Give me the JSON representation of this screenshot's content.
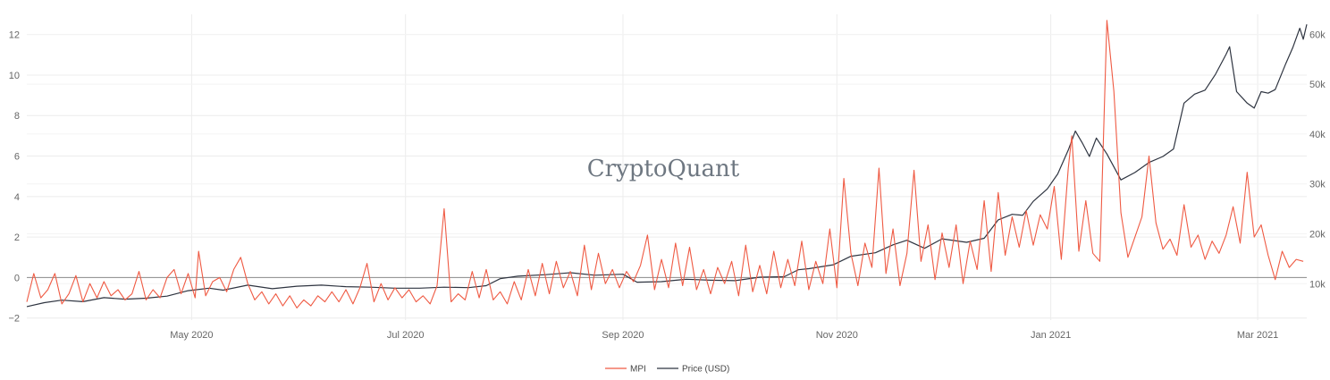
{
  "brand": {
    "watermark": "CryptoQuant"
  },
  "colors": {
    "mpi": "#ef5a43",
    "price": "#2e3440",
    "grid": "#ececec",
    "zero": "#8a8a8a",
    "tick": "#666666"
  },
  "chart_data": {
    "type": "line",
    "title": "",
    "x_range": [
      "2020-03-15",
      "2021-03-15"
    ],
    "x_ticks": [
      {
        "date": "2020-05-01",
        "label": "May 2020"
      },
      {
        "date": "2020-07-01",
        "label": "Jul 2020"
      },
      {
        "date": "2020-09-01",
        "label": "Sep 2020"
      },
      {
        "date": "2020-11-01",
        "label": "Nov 2020"
      },
      {
        "date": "2021-01-01",
        "label": "Jan 2021"
      },
      {
        "date": "2021-03-01",
        "label": "Mar 2021"
      }
    ],
    "y_left": {
      "range": [
        -2.1,
        13.0
      ],
      "ticks": [
        12,
        10,
        8,
        6,
        4,
        2,
        0,
        -2
      ],
      "labels": [
        "12",
        "10",
        "8",
        "6",
        "4",
        "2",
        "0",
        "−2"
      ]
    },
    "y_right": {
      "range": [
        2700,
        64000
      ],
      "ticks": [
        60000,
        50000,
        40000,
        30000,
        20000,
        10000
      ],
      "labels": [
        "60k",
        "50k",
        "40k",
        "30k",
        "20k",
        "10k"
      ]
    },
    "series": [
      {
        "name": "MPI",
        "axis": "left",
        "color": "#ef5a43",
        "points": [
          [
            "2020-03-15",
            -1.2
          ],
          [
            "2020-03-17",
            0.2
          ],
          [
            "2020-03-19",
            -1.0
          ],
          [
            "2020-03-21",
            -0.6
          ],
          [
            "2020-03-23",
            0.2
          ],
          [
            "2020-03-25",
            -1.3
          ],
          [
            "2020-03-27",
            -0.8
          ],
          [
            "2020-03-29",
            0.1
          ],
          [
            "2020-03-31",
            -1.2
          ],
          [
            "2020-04-02",
            -0.3
          ],
          [
            "2020-04-04",
            -1.0
          ],
          [
            "2020-04-06",
            -0.2
          ],
          [
            "2020-04-08",
            -0.9
          ],
          [
            "2020-04-10",
            -0.6
          ],
          [
            "2020-04-12",
            -1.1
          ],
          [
            "2020-04-14",
            -0.8
          ],
          [
            "2020-04-16",
            0.3
          ],
          [
            "2020-04-18",
            -1.1
          ],
          [
            "2020-04-20",
            -0.6
          ],
          [
            "2020-04-22",
            -1.0
          ],
          [
            "2020-04-24",
            0.0
          ],
          [
            "2020-04-26",
            0.4
          ],
          [
            "2020-04-28",
            -0.8
          ],
          [
            "2020-04-30",
            0.2
          ],
          [
            "2020-05-02",
            -1.0
          ],
          [
            "2020-05-03",
            1.3
          ],
          [
            "2020-05-05",
            -0.9
          ],
          [
            "2020-05-07",
            -0.2
          ],
          [
            "2020-05-09",
            0.0
          ],
          [
            "2020-05-11",
            -0.7
          ],
          [
            "2020-05-13",
            0.4
          ],
          [
            "2020-05-15",
            1.0
          ],
          [
            "2020-05-17",
            -0.3
          ],
          [
            "2020-05-19",
            -1.1
          ],
          [
            "2020-05-21",
            -0.7
          ],
          [
            "2020-05-23",
            -1.3
          ],
          [
            "2020-05-25",
            -0.8
          ],
          [
            "2020-05-27",
            -1.4
          ],
          [
            "2020-05-29",
            -0.9
          ],
          [
            "2020-05-31",
            -1.5
          ],
          [
            "2020-06-02",
            -1.1
          ],
          [
            "2020-06-04",
            -1.4
          ],
          [
            "2020-06-06",
            -0.9
          ],
          [
            "2020-06-08",
            -1.2
          ],
          [
            "2020-06-10",
            -0.7
          ],
          [
            "2020-06-12",
            -1.2
          ],
          [
            "2020-06-14",
            -0.6
          ],
          [
            "2020-06-16",
            -1.3
          ],
          [
            "2020-06-18",
            -0.5
          ],
          [
            "2020-06-20",
            0.7
          ],
          [
            "2020-06-22",
            -1.2
          ],
          [
            "2020-06-24",
            -0.3
          ],
          [
            "2020-06-26",
            -1.1
          ],
          [
            "2020-06-28",
            -0.5
          ],
          [
            "2020-06-30",
            -1.0
          ],
          [
            "2020-07-02",
            -0.6
          ],
          [
            "2020-07-04",
            -1.2
          ],
          [
            "2020-07-06",
            -0.9
          ],
          [
            "2020-07-08",
            -1.3
          ],
          [
            "2020-07-10",
            -0.4
          ],
          [
            "2020-07-12",
            3.4
          ],
          [
            "2020-07-14",
            -1.2
          ],
          [
            "2020-07-16",
            -0.8
          ],
          [
            "2020-07-18",
            -1.1
          ],
          [
            "2020-07-20",
            0.3
          ],
          [
            "2020-07-22",
            -1.0
          ],
          [
            "2020-07-24",
            0.4
          ],
          [
            "2020-07-26",
            -1.1
          ],
          [
            "2020-07-28",
            -0.7
          ],
          [
            "2020-07-30",
            -1.3
          ],
          [
            "2020-08-01",
            -0.2
          ],
          [
            "2020-08-03",
            -1.1
          ],
          [
            "2020-08-05",
            0.4
          ],
          [
            "2020-08-07",
            -0.9
          ],
          [
            "2020-08-09",
            0.7
          ],
          [
            "2020-08-11",
            -0.8
          ],
          [
            "2020-08-13",
            0.8
          ],
          [
            "2020-08-15",
            -0.5
          ],
          [
            "2020-08-17",
            0.3
          ],
          [
            "2020-08-19",
            -0.9
          ],
          [
            "2020-08-21",
            1.6
          ],
          [
            "2020-08-23",
            -0.6
          ],
          [
            "2020-08-25",
            1.2
          ],
          [
            "2020-08-27",
            -0.3
          ],
          [
            "2020-08-29",
            0.4
          ],
          [
            "2020-08-31",
            -0.5
          ],
          [
            "2020-09-02",
            0.3
          ],
          [
            "2020-09-04",
            -0.2
          ],
          [
            "2020-09-06",
            0.6
          ],
          [
            "2020-09-08",
            2.1
          ],
          [
            "2020-09-10",
            -0.6
          ],
          [
            "2020-09-12",
            0.9
          ],
          [
            "2020-09-14",
            -0.5
          ],
          [
            "2020-09-16",
            1.7
          ],
          [
            "2020-09-18",
            -0.4
          ],
          [
            "2020-09-20",
            1.5
          ],
          [
            "2020-09-22",
            -0.6
          ],
          [
            "2020-09-24",
            0.4
          ],
          [
            "2020-09-26",
            -0.8
          ],
          [
            "2020-09-28",
            0.5
          ],
          [
            "2020-09-30",
            -0.3
          ],
          [
            "2020-10-02",
            0.8
          ],
          [
            "2020-10-04",
            -0.9
          ],
          [
            "2020-10-06",
            1.6
          ],
          [
            "2020-10-08",
            -0.7
          ],
          [
            "2020-10-10",
            0.6
          ],
          [
            "2020-10-12",
            -0.8
          ],
          [
            "2020-10-14",
            1.3
          ],
          [
            "2020-10-16",
            -0.5
          ],
          [
            "2020-10-18",
            0.9
          ],
          [
            "2020-10-20",
            -0.4
          ],
          [
            "2020-10-22",
            1.8
          ],
          [
            "2020-10-24",
            -0.6
          ],
          [
            "2020-10-26",
            0.8
          ],
          [
            "2020-10-28",
            -0.3
          ],
          [
            "2020-10-30",
            2.4
          ],
          [
            "2020-11-01",
            -0.5
          ],
          [
            "2020-11-03",
            4.9
          ],
          [
            "2020-11-05",
            1.2
          ],
          [
            "2020-11-07",
            -0.4
          ],
          [
            "2020-11-09",
            1.7
          ],
          [
            "2020-11-11",
            0.5
          ],
          [
            "2020-11-13",
            5.4
          ],
          [
            "2020-11-15",
            0.2
          ],
          [
            "2020-11-17",
            2.4
          ],
          [
            "2020-11-19",
            -0.4
          ],
          [
            "2020-11-21",
            1.2
          ],
          [
            "2020-11-23",
            5.3
          ],
          [
            "2020-11-25",
            0.8
          ],
          [
            "2020-11-27",
            2.6
          ],
          [
            "2020-11-29",
            -0.1
          ],
          [
            "2020-12-01",
            2.2
          ],
          [
            "2020-12-03",
            0.5
          ],
          [
            "2020-12-05",
            2.6
          ],
          [
            "2020-12-07",
            -0.3
          ],
          [
            "2020-12-09",
            1.8
          ],
          [
            "2020-12-11",
            0.4
          ],
          [
            "2020-12-13",
            3.8
          ],
          [
            "2020-12-15",
            0.3
          ],
          [
            "2020-12-17",
            4.2
          ],
          [
            "2020-12-19",
            1.1
          ],
          [
            "2020-12-21",
            3.0
          ],
          [
            "2020-12-23",
            1.5
          ],
          [
            "2020-12-25",
            3.3
          ],
          [
            "2020-12-27",
            1.6
          ],
          [
            "2020-12-29",
            3.1
          ],
          [
            "2020-12-31",
            2.4
          ],
          [
            "2021-01-02",
            4.5
          ],
          [
            "2021-01-04",
            0.9
          ],
          [
            "2021-01-06",
            5.4
          ],
          [
            "2021-01-07",
            7.0
          ],
          [
            "2021-01-09",
            1.3
          ],
          [
            "2021-01-11",
            3.8
          ],
          [
            "2021-01-13",
            1.2
          ],
          [
            "2021-01-15",
            0.8
          ],
          [
            "2021-01-17",
            12.7
          ],
          [
            "2021-01-19",
            9.2
          ],
          [
            "2021-01-21",
            3.2
          ],
          [
            "2021-01-23",
            1.0
          ],
          [
            "2021-01-25",
            2.0
          ],
          [
            "2021-01-27",
            3.0
          ],
          [
            "2021-01-29",
            6.0
          ],
          [
            "2021-01-31",
            2.7
          ],
          [
            "2021-02-02",
            1.4
          ],
          [
            "2021-02-04",
            1.9
          ],
          [
            "2021-02-06",
            1.1
          ],
          [
            "2021-02-08",
            3.6
          ],
          [
            "2021-02-10",
            1.5
          ],
          [
            "2021-02-12",
            2.1
          ],
          [
            "2021-02-14",
            0.9
          ],
          [
            "2021-02-16",
            1.8
          ],
          [
            "2021-02-18",
            1.2
          ],
          [
            "2021-02-20",
            2.1
          ],
          [
            "2021-02-22",
            3.5
          ],
          [
            "2021-02-24",
            1.7
          ],
          [
            "2021-02-26",
            5.2
          ],
          [
            "2021-02-28",
            2.0
          ],
          [
            "2021-03-02",
            2.6
          ],
          [
            "2021-03-04",
            1.1
          ],
          [
            "2021-03-06",
            -0.1
          ],
          [
            "2021-03-08",
            1.3
          ],
          [
            "2021-03-10",
            0.5
          ],
          [
            "2021-03-12",
            0.9
          ],
          [
            "2021-03-14",
            0.8
          ]
        ]
      },
      {
        "name": "Price (USD)",
        "axis": "right",
        "color": "#2e3440",
        "points": [
          [
            "2020-03-15",
            5400
          ],
          [
            "2020-03-20",
            6200
          ],
          [
            "2020-03-25",
            6700
          ],
          [
            "2020-03-31",
            6400
          ],
          [
            "2020-04-06",
            7200
          ],
          [
            "2020-04-12",
            6900
          ],
          [
            "2020-04-18",
            7100
          ],
          [
            "2020-04-24",
            7500
          ],
          [
            "2020-04-30",
            8600
          ],
          [
            "2020-05-06",
            9100
          ],
          [
            "2020-05-10",
            8700
          ],
          [
            "2020-05-17",
            9700
          ],
          [
            "2020-05-24",
            9000
          ],
          [
            "2020-05-31",
            9500
          ],
          [
            "2020-06-07",
            9700
          ],
          [
            "2020-06-14",
            9400
          ],
          [
            "2020-06-21",
            9300
          ],
          [
            "2020-06-28",
            9100
          ],
          [
            "2020-07-05",
            9100
          ],
          [
            "2020-07-12",
            9300
          ],
          [
            "2020-07-19",
            9200
          ],
          [
            "2020-07-24",
            9600
          ],
          [
            "2020-07-28",
            11000
          ],
          [
            "2020-08-02",
            11500
          ],
          [
            "2020-08-10",
            11800
          ],
          [
            "2020-08-17",
            12200
          ],
          [
            "2020-08-24",
            11700
          ],
          [
            "2020-09-01",
            11900
          ],
          [
            "2020-09-05",
            10300
          ],
          [
            "2020-09-12",
            10400
          ],
          [
            "2020-09-19",
            10900
          ],
          [
            "2020-09-26",
            10700
          ],
          [
            "2020-10-03",
            10600
          ],
          [
            "2020-10-10",
            11300
          ],
          [
            "2020-10-17",
            11400
          ],
          [
            "2020-10-21",
            12800
          ],
          [
            "2020-10-24",
            13000
          ],
          [
            "2020-10-31",
            13800
          ],
          [
            "2020-11-05",
            15500
          ],
          [
            "2020-11-12",
            16200
          ],
          [
            "2020-11-17",
            17800
          ],
          [
            "2020-11-21",
            18700
          ],
          [
            "2020-11-26",
            17100
          ],
          [
            "2020-12-01",
            19000
          ],
          [
            "2020-12-08",
            18300
          ],
          [
            "2020-12-13",
            19100
          ],
          [
            "2020-12-17",
            22800
          ],
          [
            "2020-12-21",
            23900
          ],
          [
            "2020-12-24",
            23700
          ],
          [
            "2020-12-27",
            26500
          ],
          [
            "2020-12-31",
            29000
          ],
          [
            "2021-01-03",
            32000
          ],
          [
            "2021-01-06",
            36800
          ],
          [
            "2021-01-08",
            40600
          ],
          [
            "2021-01-10",
            38200
          ],
          [
            "2021-01-12",
            35500
          ],
          [
            "2021-01-14",
            39200
          ],
          [
            "2021-01-17",
            36000
          ],
          [
            "2021-01-21",
            30800
          ],
          [
            "2021-01-25",
            32300
          ],
          [
            "2021-01-29",
            34300
          ],
          [
            "2021-02-02",
            35500
          ],
          [
            "2021-02-05",
            37000
          ],
          [
            "2021-02-08",
            46200
          ],
          [
            "2021-02-11",
            48000
          ],
          [
            "2021-02-14",
            48800
          ],
          [
            "2021-02-17",
            52000
          ],
          [
            "2021-02-20",
            56000
          ],
          [
            "2021-02-21",
            57500
          ],
          [
            "2021-02-23",
            48500
          ],
          [
            "2021-02-26",
            46200
          ],
          [
            "2021-02-28",
            45200
          ],
          [
            "2021-03-02",
            48500
          ],
          [
            "2021-03-04",
            48200
          ],
          [
            "2021-03-06",
            48900
          ],
          [
            "2021-03-09",
            54100
          ],
          [
            "2021-03-11",
            57300
          ],
          [
            "2021-03-13",
            61200
          ],
          [
            "2021-03-14",
            59000
          ],
          [
            "2021-03-15",
            62000
          ]
        ]
      }
    ],
    "legend": {
      "position": "bottom-center",
      "items": [
        "MPI",
        "Price (USD)"
      ]
    },
    "grid": true
  }
}
